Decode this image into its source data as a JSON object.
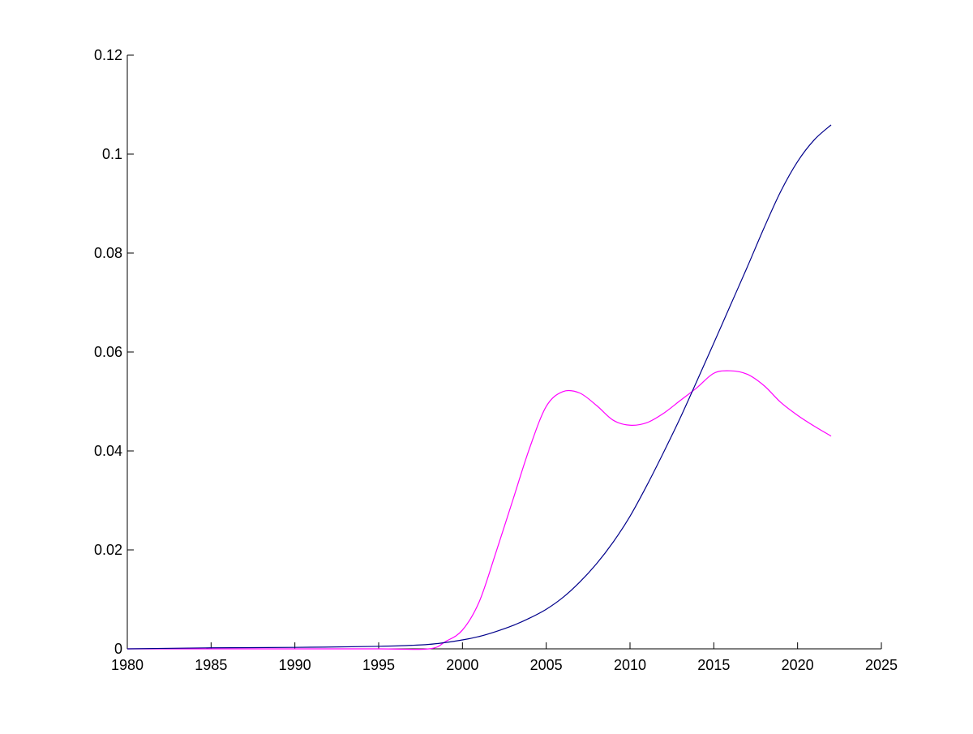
{
  "chart_data": {
    "type": "line",
    "title": "",
    "xlabel": "",
    "ylabel": "",
    "xlim": [
      1980,
      2025
    ],
    "ylim": [
      0,
      0.12
    ],
    "x_ticks": [
      1980,
      1985,
      1990,
      1995,
      2000,
      2005,
      2010,
      2015,
      2020,
      2025
    ],
    "y_ticks": [
      0,
      0.02,
      0.04,
      0.06,
      0.08,
      0.1,
      0.12
    ],
    "x_tick_labels": [
      "1980",
      "1985",
      "1990",
      "1995",
      "2000",
      "2005",
      "2010",
      "2015",
      "2020",
      "2025"
    ],
    "y_tick_labels": [
      "0",
      "0.02",
      "0.04",
      "0.06",
      "0.08",
      "0.1",
      "0.12"
    ],
    "grid": false,
    "legend": "none",
    "series": [
      {
        "color": "#00008b",
        "x": [
          1980,
          1985,
          1990,
          1995,
          1998,
          2000,
          2001,
          2002,
          2003,
          2004,
          2005,
          2006,
          2007,
          2008,
          2009,
          2010,
          2011,
          2012,
          2013,
          2014,
          2015,
          2016,
          2017,
          2018,
          2019,
          2020,
          2021,
          2022
        ],
        "y": [
          0,
          0.0002,
          0.0003,
          0.0005,
          0.0009,
          0.0018,
          0.0025,
          0.0035,
          0.0047,
          0.0062,
          0.008,
          0.0104,
          0.0135,
          0.0172,
          0.0216,
          0.0268,
          0.033,
          0.0397,
          0.0467,
          0.0542,
          0.0618,
          0.0695,
          0.0772,
          0.0851,
          0.0925,
          0.0985,
          0.1029,
          0.1059
        ]
      },
      {
        "color": "#ff00ff",
        "x": [
          1980,
          1985,
          1990,
          1995,
          1998,
          1999,
          2000,
          2001,
          2002,
          2003,
          2004,
          2005,
          2006,
          2007,
          2008,
          2009,
          2010,
          2011,
          2012,
          2013,
          2014,
          2015,
          2016,
          2017,
          2018,
          2019,
          2020,
          2021,
          2022
        ],
        "y": [
          0,
          0,
          0,
          0,
          0,
          0.0015,
          0.0038,
          0.0095,
          0.0195,
          0.03,
          0.0405,
          0.049,
          0.052,
          0.0517,
          0.0492,
          0.0462,
          0.0452,
          0.0457,
          0.0476,
          0.0502,
          0.0528,
          0.0557,
          0.0562,
          0.0555,
          0.0532,
          0.0498,
          0.0472,
          0.045,
          0.043
        ]
      }
    ]
  }
}
